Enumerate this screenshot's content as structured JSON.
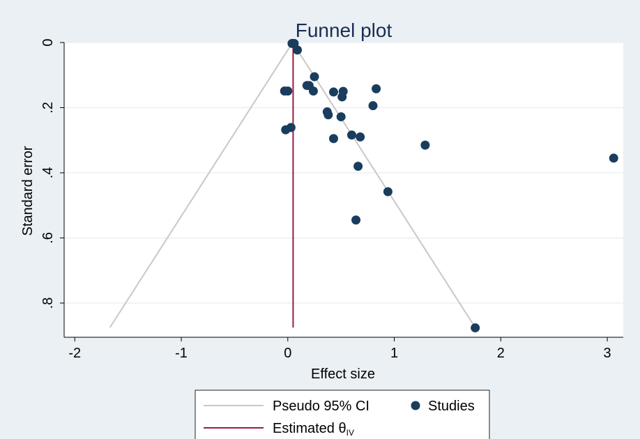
{
  "chart_data": {
    "type": "scatter",
    "title": "Funnel plot",
    "xlabel": "Effect size",
    "ylabel": "Standard error",
    "xlim": [
      -2.1,
      3.15
    ],
    "ylim": [
      0,
      0.905
    ],
    "y_reversed": true,
    "grid": true,
    "x_ticks": [
      -2,
      -1,
      0,
      1,
      2,
      3
    ],
    "x_tick_labels": [
      "-2",
      "-1",
      "0",
      "1",
      "2",
      "3"
    ],
    "y_ticks": [
      0,
      0.2,
      0.4,
      0.6,
      0.8
    ],
    "y_tick_labels": [
      "0",
      ".2",
      ".4",
      ".6",
      ".8"
    ],
    "legend_position": "bottom",
    "series": [
      {
        "name": "Pseudo 95% CI",
        "kind": "line",
        "color": "#c8c8c8",
        "points": [
          [
            -1.67,
            0.875
          ],
          [
            0.045,
            0.0
          ],
          [
            1.76,
            0.875
          ]
        ]
      },
      {
        "name": "Estimated θ",
        "name_subscript": "IV",
        "kind": "vline",
        "color": "#9b1b45",
        "x": 0.05,
        "y_range": [
          0.0,
          0.875
        ]
      },
      {
        "name": "Studies",
        "kind": "scatter",
        "color": "#1a3d5e",
        "points": [
          [
            0.04,
            0.003
          ],
          [
            0.06,
            0.003
          ],
          [
            0.09,
            0.023
          ],
          [
            0.25,
            0.105
          ],
          [
            0.18,
            0.132
          ],
          [
            0.2,
            0.132
          ],
          [
            0.24,
            0.149
          ],
          [
            -0.03,
            0.149
          ],
          [
            0.0,
            0.149
          ],
          [
            0.43,
            0.152
          ],
          [
            0.52,
            0.15
          ],
          [
            0.51,
            0.167
          ],
          [
            0.83,
            0.142
          ],
          [
            0.8,
            0.194
          ],
          [
            0.37,
            0.213
          ],
          [
            0.38,
            0.222
          ],
          [
            0.5,
            0.228
          ],
          [
            0.03,
            0.261
          ],
          [
            -0.02,
            0.268
          ],
          [
            0.43,
            0.295
          ],
          [
            0.6,
            0.284
          ],
          [
            0.68,
            0.29
          ],
          [
            1.29,
            0.315
          ],
          [
            3.06,
            0.355
          ],
          [
            0.66,
            0.38
          ],
          [
            0.94,
            0.458
          ],
          [
            0.64,
            0.545
          ],
          [
            1.76,
            0.876
          ]
        ]
      }
    ]
  }
}
